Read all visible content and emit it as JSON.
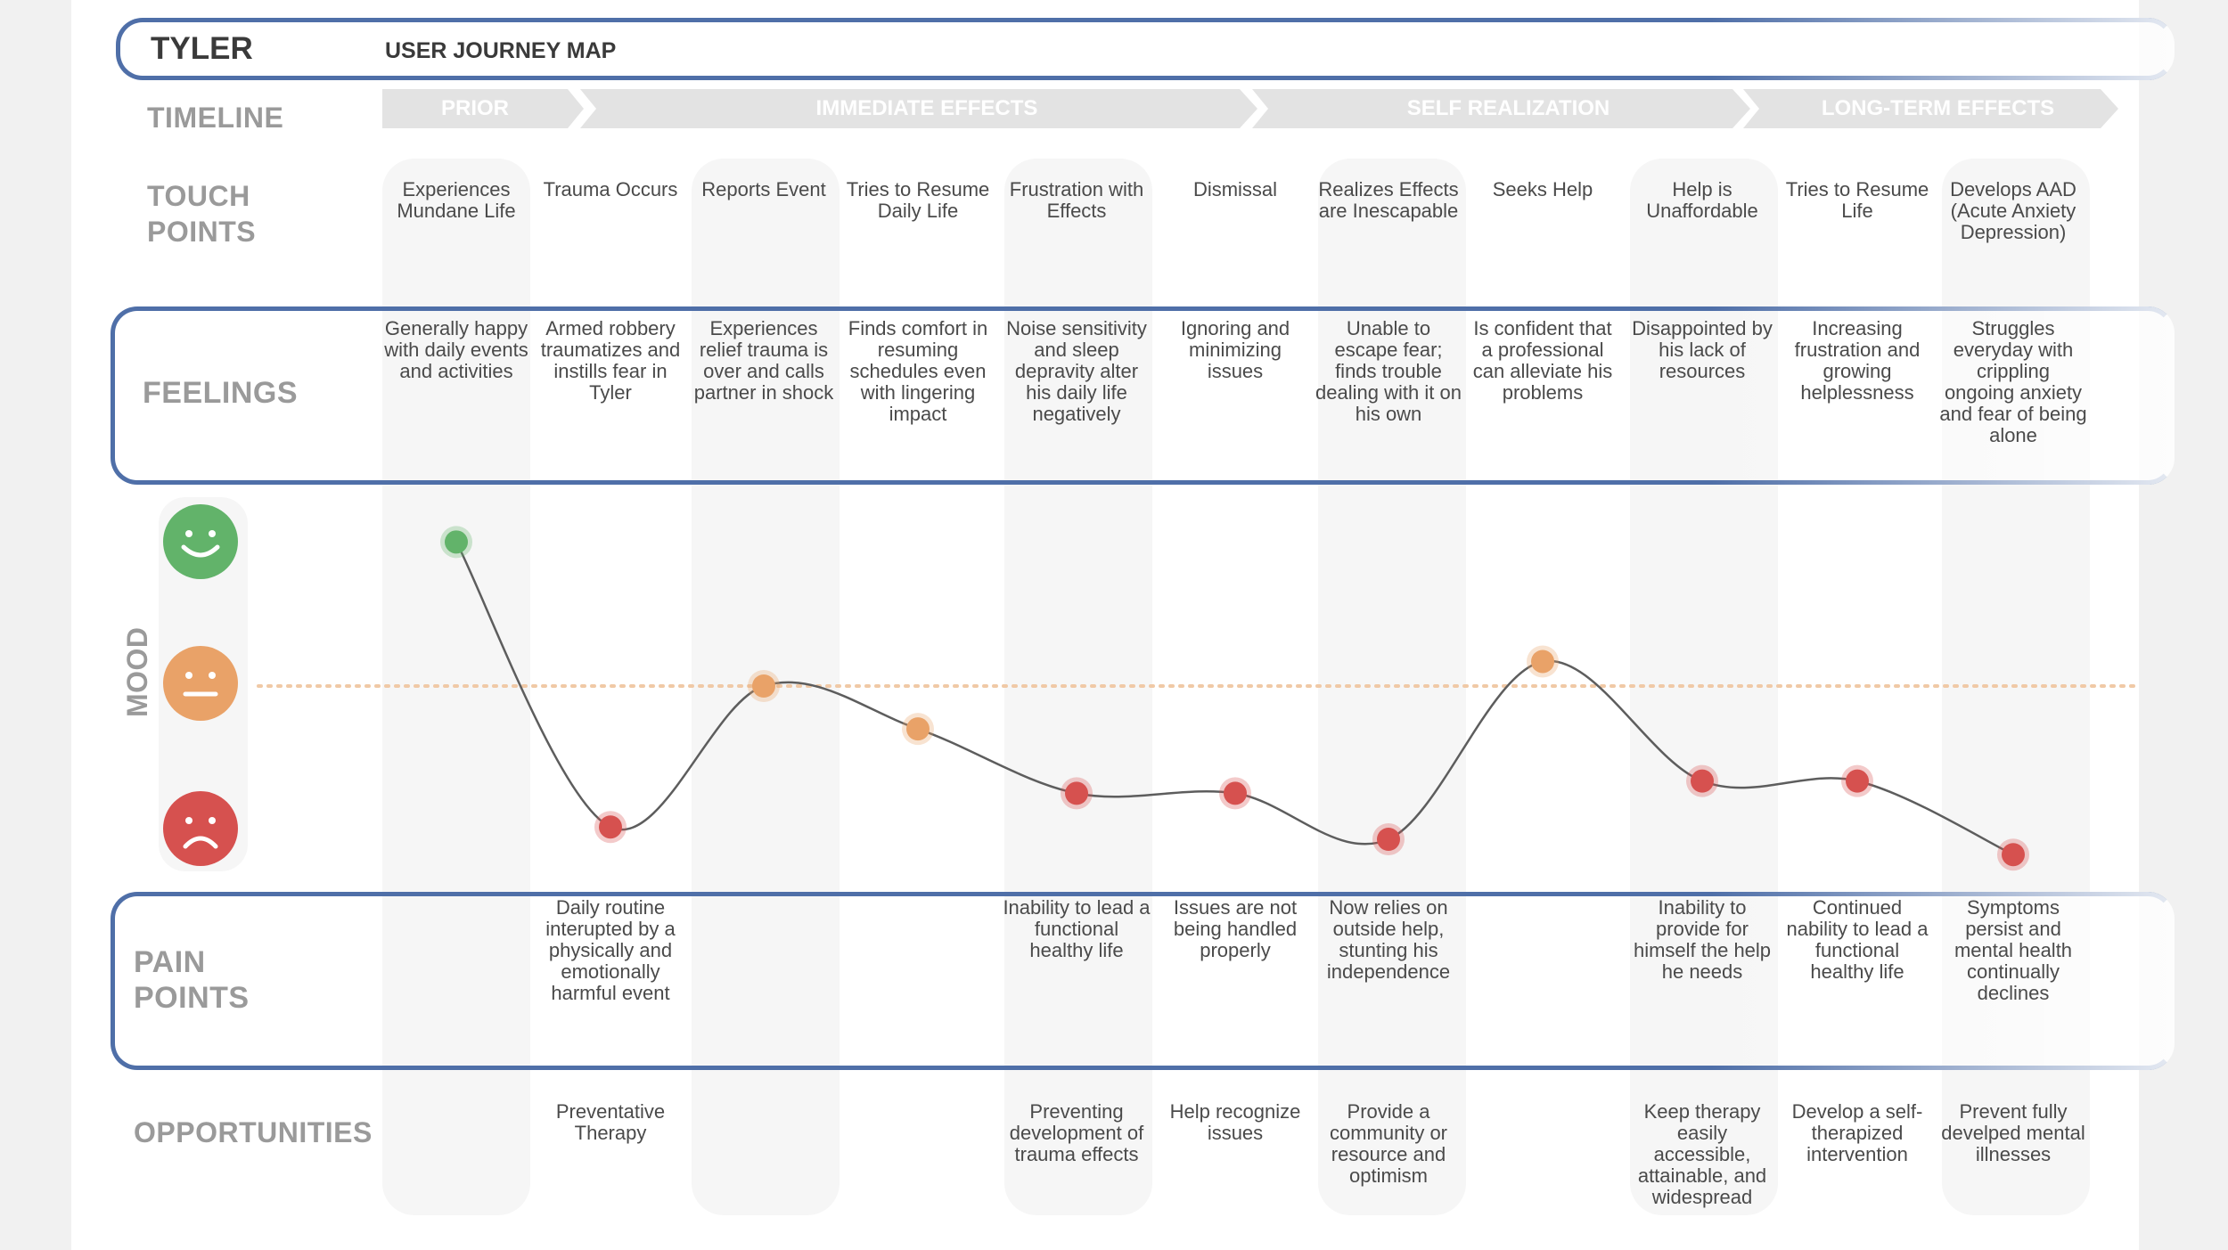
{
  "header": {
    "name": "TYLER",
    "title": "USER JOURNEY MAP"
  },
  "row_labels": {
    "timeline": "TIMELINE",
    "touch_points": [
      "TOUCH",
      "POINTS"
    ],
    "feelings": "FEELINGS",
    "mood": "MOOD",
    "pain_points": [
      "PAIN",
      "POINTS"
    ],
    "opportunities": "OPPORTUNITIES"
  },
  "phases": [
    "PRIOR",
    "IMMEDIATE EFFECTS",
    "SELF REALIZATION",
    "LONG-TERM EFFECTS"
  ],
  "moods": [
    "happy-icon",
    "neutral-icon",
    "sad-icon"
  ],
  "colors": {
    "accent": "#4f6fa8",
    "happy": "#62b36a",
    "neutral": "#e9a268",
    "sad": "#d6514f",
    "label": "#9a9a9a",
    "phase": "#e3e3e3"
  },
  "chart_data": {
    "type": "line",
    "title": "MOOD",
    "y_levels": [
      "sad",
      "neutral",
      "happy"
    ],
    "ylim": [
      0,
      1
    ],
    "baseline": 0.5,
    "x": [
      "Experiences Mundane Life",
      "Trauma Occurs",
      "Reports Event",
      "Tries to Resume Daily Life",
      "Frustration with Effects",
      "Dismissal",
      "Realizes Effects are Inescapable",
      "Seeks Help",
      "Help is Unaffordable",
      "Tries to Resume Life",
      "Develops AAD (Acute Anxiety Depression)"
    ],
    "values": [
      0.97,
      0.04,
      0.5,
      0.36,
      0.15,
      0.15,
      0.0,
      0.58,
      0.19,
      0.19,
      -0.05
    ],
    "point_states": [
      "happy",
      "sad",
      "neutral",
      "neutral",
      "sad",
      "sad",
      "sad",
      "neutral",
      "sad",
      "sad",
      "sad"
    ]
  },
  "touch_points": [
    "Experiences Mundane Life",
    "Trauma Occurs",
    "Reports Event",
    "Tries to Resume Daily Life",
    "Frustration with Effects",
    "Dismissal",
    "Realizes Effects are Inescapable",
    "Seeks Help",
    "Help is Unaffordable",
    "Tries to Resume Life",
    "Develops AAD (Acute Anxiety Depression)"
  ],
  "feelings": [
    "Generally happy with daily events and activities",
    "Armed robbery traumatizes and instills fear in Tyler",
    "Experiences relief trauma is over and calls partner in shock",
    "Finds comfort in resuming schedules even with lingering impact",
    "Noise sensitivity and sleep depravity alter his daily life negatively",
    "Ignoring and minimizing issues",
    "Unable to escape fear; finds trouble dealing with it on his own",
    "Is confident that a professional can alleviate his problems",
    "Disappointed by his lack of resources",
    "Increasing frustration and growing helplessness",
    "Struggles everyday with crippling ongoing anxiety and fear of being alone"
  ],
  "pain_points": [
    "",
    "Daily routine interupted by a physically and emotionally harmful event",
    "",
    "",
    "Inability to lead a functional healthy life",
    "Issues are not being handled properly",
    "Now relies on outside help, stunting his independence",
    "",
    "Inability to provide for himself the help he needs",
    "Continued nability to lead a functional healthy life",
    "Symptoms persist and mental health continually declines"
  ],
  "opportunities": [
    "",
    "Preventative Therapy",
    "",
    "",
    "Preventing development of trauma effects",
    "Help recognize issues",
    "Provide a community or resource and optimism",
    "",
    "Keep therapy easily accessible, attainable, and widespread",
    "Develop a self-therapized intervention",
    "Prevent fully develped mental illnesses"
  ]
}
